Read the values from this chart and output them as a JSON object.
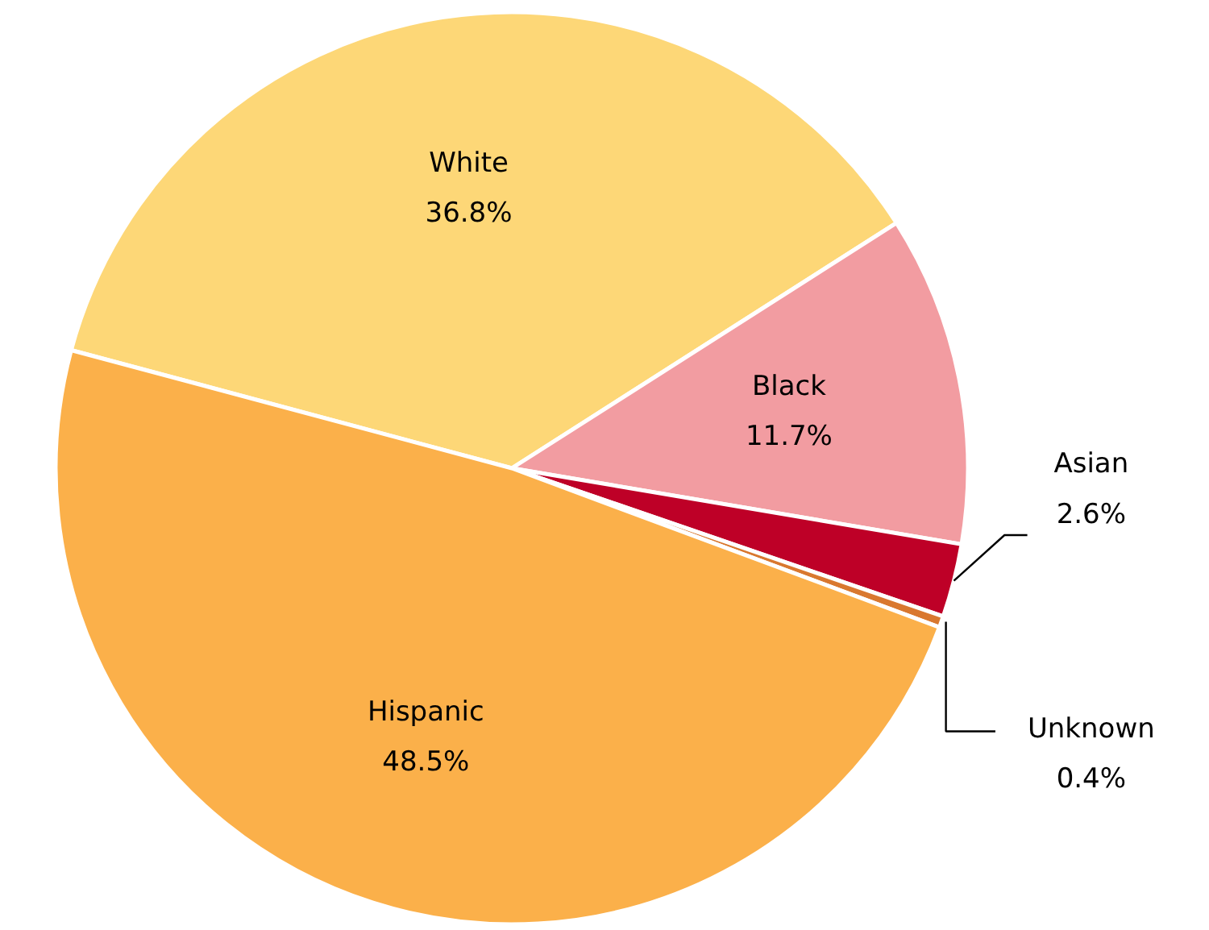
{
  "chart_data": {
    "type": "pie",
    "categories": [
      "White",
      "Black",
      "Asian",
      "Unknown",
      "Hispanic"
    ],
    "values": [
      36.8,
      11.7,
      2.6,
      0.4,
      48.5
    ],
    "colors": [
      "#fdd777",
      "#f29ca1",
      "#be0027",
      "#d9782f",
      "#fbb04a"
    ],
    "value_labels": [
      "36.8%",
      "11.7%",
      "2.6%",
      "0.4%",
      "48.5%"
    ]
  }
}
